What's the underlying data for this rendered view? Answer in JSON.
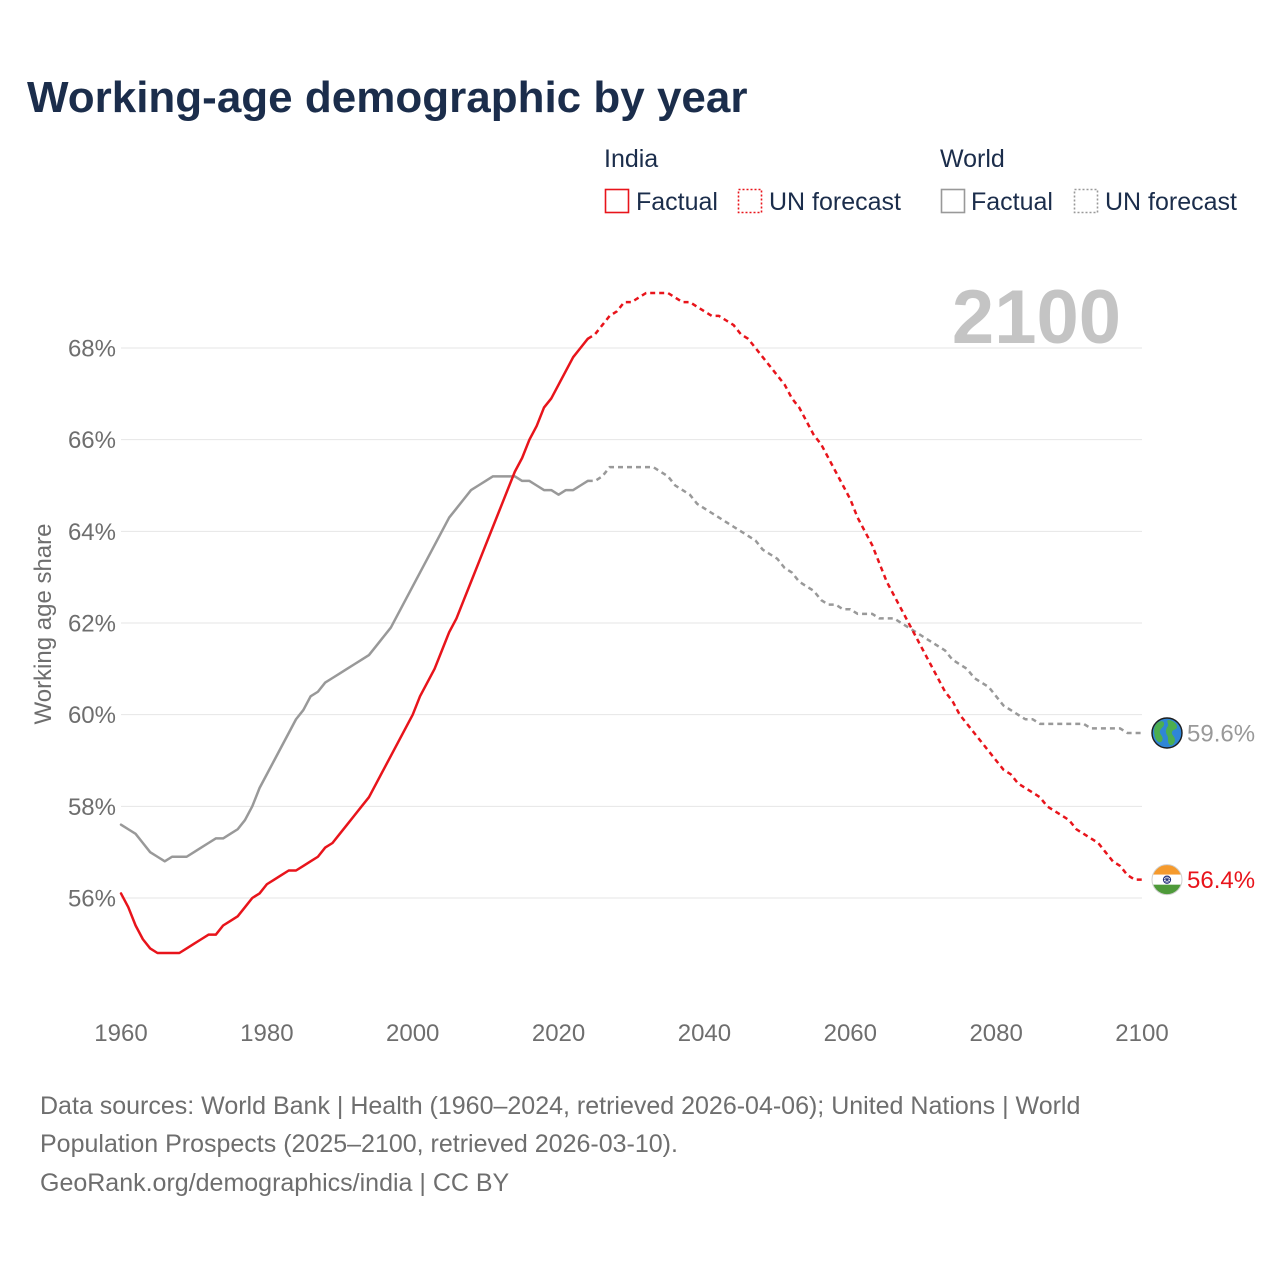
{
  "chart_data": {
    "type": "line",
    "title": "Working-age demographic by year",
    "ylabel": "Working age share",
    "xlim": [
      1960,
      2100
    ],
    "ylim": [
      54,
      70
    ],
    "grid_y": true,
    "x_ticks": [
      1960,
      1980,
      2000,
      2020,
      2040,
      2060,
      2080,
      2100
    ],
    "x_tick_labels": [
      "1960",
      "1980",
      "2000",
      "2020",
      "2040",
      "2060",
      "2080",
      "2100"
    ],
    "y_ticks": [
      56,
      58,
      60,
      62,
      64,
      66,
      68
    ],
    "y_tick_labels": [
      "56%",
      "58%",
      "60%",
      "62%",
      "64%",
      "66%",
      "68%"
    ],
    "current_year_label": "2100",
    "series": [
      {
        "name": "India",
        "color": "#e8141b",
        "icon": "india-flag-icon",
        "end_value_label": "56.4%",
        "factual": {
          "label": "Factual",
          "start_year": 1960,
          "values": [
            56.1,
            55.8,
            55.4,
            55.1,
            54.9,
            54.8,
            54.8,
            54.8,
            54.8,
            54.9,
            55.0,
            55.1,
            55.2,
            55.2,
            55.4,
            55.5,
            55.6,
            55.8,
            56.0,
            56.1,
            56.3,
            56.4,
            56.5,
            56.6,
            56.6,
            56.7,
            56.8,
            56.9,
            57.1,
            57.2,
            57.4,
            57.6,
            57.8,
            58.0,
            58.2,
            58.5,
            58.8,
            59.1,
            59.4,
            59.7,
            60.0,
            60.4,
            60.7,
            61.0,
            61.4,
            61.8,
            62.1,
            62.5,
            62.9,
            63.3,
            63.7,
            64.1,
            64.5,
            64.9,
            65.3,
            65.6,
            66.0,
            66.3,
            66.7,
            66.9,
            67.2,
            67.5,
            67.8,
            68.0,
            68.2
          ]
        },
        "forecast": {
          "label": "UN forecast",
          "start_year": 2025,
          "values": [
            68.3,
            68.5,
            68.7,
            68.8,
            69.0,
            69.0,
            69.1,
            69.2,
            69.2,
            69.2,
            69.2,
            69.1,
            69.0,
            69.0,
            68.9,
            68.8,
            68.7,
            68.7,
            68.6,
            68.5,
            68.3,
            68.2,
            68.0,
            67.8,
            67.6,
            67.4,
            67.2,
            66.9,
            66.7,
            66.4,
            66.1,
            65.9,
            65.6,
            65.3,
            65.0,
            64.7,
            64.3,
            64.0,
            63.7,
            63.3,
            62.9,
            62.6,
            62.3,
            62.0,
            61.7,
            61.4,
            61.1,
            60.8,
            60.5,
            60.3,
            60.0,
            59.8,
            59.6,
            59.4,
            59.2,
            59.0,
            58.8,
            58.7,
            58.5,
            58.4,
            58.3,
            58.2,
            58.0,
            57.9,
            57.8,
            57.7,
            57.5,
            57.4,
            57.3,
            57.2,
            57.0,
            56.8,
            56.7,
            56.5,
            56.4,
            56.4
          ]
        }
      },
      {
        "name": "World",
        "color": "#999999",
        "icon": "globe-icon",
        "end_value_label": "59.6%",
        "factual": {
          "label": "Factual",
          "start_year": 1960,
          "values": [
            57.6,
            57.5,
            57.4,
            57.2,
            57.0,
            56.9,
            56.8,
            56.9,
            56.9,
            56.9,
            57.0,
            57.1,
            57.2,
            57.3,
            57.3,
            57.4,
            57.5,
            57.7,
            58.0,
            58.4,
            58.7,
            59.0,
            59.3,
            59.6,
            59.9,
            60.1,
            60.4,
            60.5,
            60.7,
            60.8,
            60.9,
            61.0,
            61.1,
            61.2,
            61.3,
            61.5,
            61.7,
            61.9,
            62.2,
            62.5,
            62.8,
            63.1,
            63.4,
            63.7,
            64.0,
            64.3,
            64.5,
            64.7,
            64.9,
            65.0,
            65.1,
            65.2,
            65.2,
            65.2,
            65.2,
            65.1,
            65.1,
            65.0,
            64.9,
            64.9,
            64.8,
            64.9,
            64.9,
            65.0,
            65.1
          ]
        },
        "forecast": {
          "label": "UN forecast",
          "start_year": 2025,
          "values": [
            65.1,
            65.2,
            65.4,
            65.4,
            65.4,
            65.4,
            65.4,
            65.4,
            65.4,
            65.3,
            65.2,
            65.0,
            64.9,
            64.8,
            64.6,
            64.5,
            64.4,
            64.3,
            64.2,
            64.1,
            64.0,
            63.9,
            63.8,
            63.6,
            63.5,
            63.4,
            63.2,
            63.1,
            62.9,
            62.8,
            62.7,
            62.5,
            62.4,
            62.4,
            62.3,
            62.3,
            62.2,
            62.2,
            62.2,
            62.1,
            62.1,
            62.1,
            62.0,
            61.9,
            61.8,
            61.7,
            61.6,
            61.5,
            61.4,
            61.2,
            61.1,
            61.0,
            60.8,
            60.7,
            60.6,
            60.4,
            60.2,
            60.1,
            60.0,
            59.9,
            59.9,
            59.8,
            59.8,
            59.8,
            59.8,
            59.8,
            59.8,
            59.8,
            59.7,
            59.7,
            59.7,
            59.7,
            59.7,
            59.6,
            59.6,
            59.6
          ]
        }
      }
    ]
  },
  "footer": {
    "source_lines": [
      "Data sources: World Bank | Health (1960–2024, retrieved 2026-04-06); United Nations | World",
      "Population Prospects (2025–2100, retrieved 2026-03-10)."
    ],
    "attribution": "GeoRank.org/demographics/india | CC BY"
  }
}
